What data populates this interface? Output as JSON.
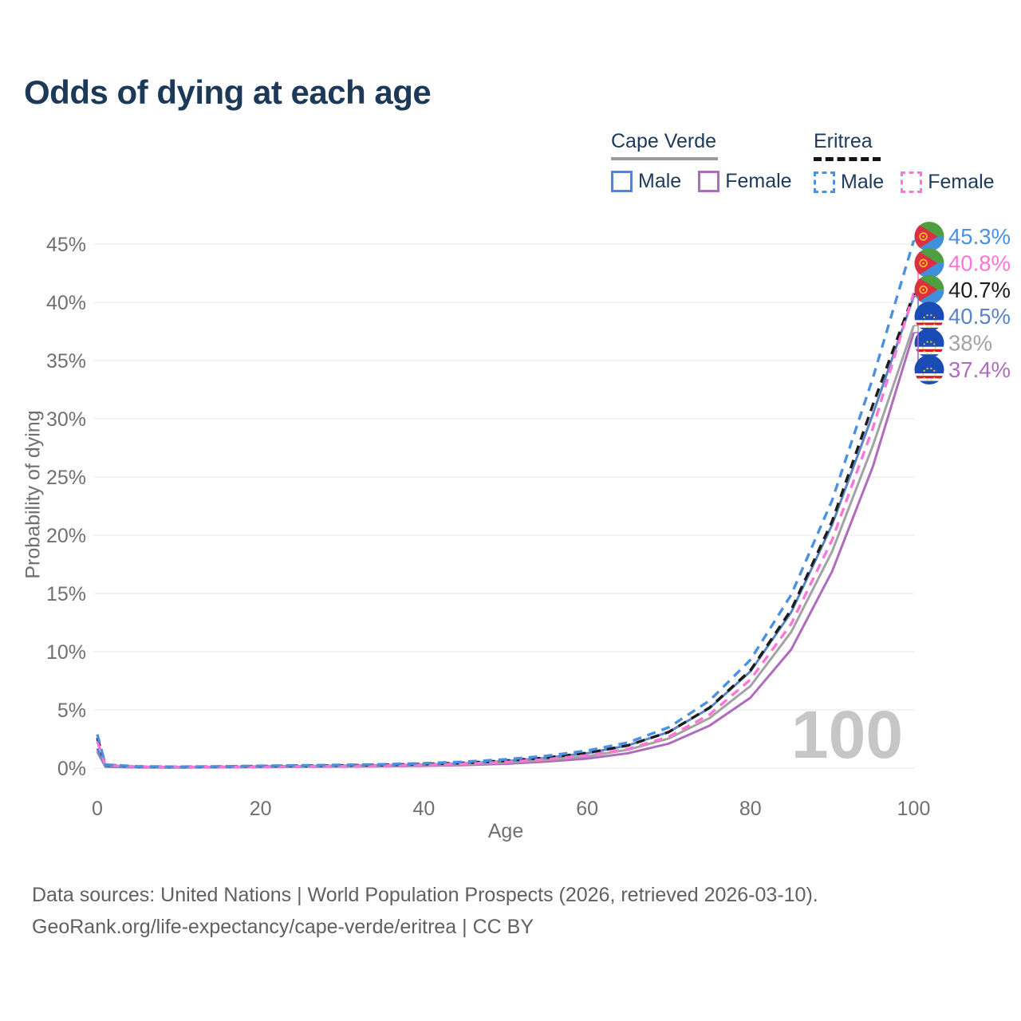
{
  "title": "Odds of dying at each age",
  "legend": {
    "groups": [
      {
        "label": "Cape Verde",
        "items": [
          {
            "label": "Male"
          },
          {
            "label": "Female"
          }
        ]
      },
      {
        "label": "Eritrea",
        "items": [
          {
            "label": "Male"
          },
          {
            "label": "Female"
          }
        ]
      }
    ]
  },
  "chart_data": {
    "type": "line",
    "title": "Odds of dying at each age",
    "xlabel": "Age",
    "ylabel": "Probability of dying",
    "xlim": [
      0,
      100
    ],
    "ylim_pct": [
      0,
      45
    ],
    "grid": "horizontal",
    "legend_position": "top-right",
    "watermark": "100",
    "x_ticks": [
      {
        "label": "0",
        "value": 0
      },
      {
        "label": "20",
        "value": 20
      },
      {
        "label": "40",
        "value": 40
      },
      {
        "label": "60",
        "value": 60
      },
      {
        "label": "80",
        "value": 80
      },
      {
        "label": "100",
        "value": 100
      }
    ],
    "y_ticks": [
      {
        "label": "0%",
        "value": 0
      },
      {
        "label": "5%",
        "value": 5
      },
      {
        "label": "10%",
        "value": 10
      },
      {
        "label": "15%",
        "value": 15
      },
      {
        "label": "20%",
        "value": 20
      },
      {
        "label": "25%",
        "value": 25
      },
      {
        "label": "30%",
        "value": 30
      },
      {
        "label": "35%",
        "value": 35
      },
      {
        "label": "40%",
        "value": 40
      },
      {
        "label": "45%",
        "value": 45
      }
    ],
    "x": [
      0,
      1,
      5,
      10,
      15,
      20,
      25,
      30,
      35,
      40,
      45,
      50,
      55,
      60,
      65,
      70,
      75,
      80,
      85,
      90,
      95,
      100
    ],
    "series": [
      {
        "name": "Eritrea Male",
        "country": "Eritrea",
        "sex": "Male",
        "style": "dashed",
        "color": "#4b90e2",
        "flag": "eritrea",
        "end_label": "45.3%",
        "values": [
          2.9,
          0.3,
          0.15,
          0.12,
          0.15,
          0.2,
          0.24,
          0.28,
          0.33,
          0.42,
          0.55,
          0.75,
          1.05,
          1.5,
          2.2,
          3.5,
          5.8,
          9.3,
          14.9,
          23.0,
          33.5,
          45.3
        ]
      },
      {
        "name": "Eritrea Female",
        "country": "Eritrea",
        "sex": "Female",
        "style": "dashed",
        "color": "#fb76d6",
        "flag": "eritrea",
        "end_label": "40.8%",
        "values": [
          2.3,
          0.25,
          0.12,
          0.09,
          0.11,
          0.13,
          0.15,
          0.18,
          0.22,
          0.28,
          0.38,
          0.52,
          0.75,
          1.1,
          1.65,
          2.7,
          4.6,
          7.6,
          12.4,
          19.6,
          29.2,
          40.8
        ]
      },
      {
        "name": "Eritrea Both sexes",
        "country": "Eritrea",
        "sex": "Both",
        "style": "dashed",
        "color": "#1c1c1c",
        "flag": "eritrea",
        "end_label": "40.7%",
        "values": [
          2.6,
          0.28,
          0.13,
          0.1,
          0.13,
          0.17,
          0.2,
          0.23,
          0.28,
          0.35,
          0.46,
          0.64,
          0.9,
          1.3,
          1.95,
          3.1,
          5.2,
          8.4,
          13.6,
          21.2,
          31.2,
          40.7
        ]
      },
      {
        "name": "Cape Verde Male",
        "country": "Cape Verde",
        "sex": "Male",
        "style": "solid",
        "color": "#5b84c4",
        "flag": "cape-verde",
        "end_label": "40.5%",
        "values": [
          1.7,
          0.16,
          0.08,
          0.07,
          0.1,
          0.15,
          0.18,
          0.21,
          0.25,
          0.31,
          0.42,
          0.6,
          0.88,
          1.28,
          1.95,
          3.1,
          5.15,
          8.3,
          13.4,
          20.9,
          30.4,
          40.5
        ]
      },
      {
        "name": "Cape Verde Both sexes",
        "country": "Cape Verde",
        "sex": "Both",
        "style": "solid",
        "color": "#a3a3a3",
        "flag": "cape-verde",
        "end_label": "38%",
        "values": [
          1.55,
          0.14,
          0.07,
          0.06,
          0.08,
          0.11,
          0.14,
          0.16,
          0.2,
          0.25,
          0.34,
          0.48,
          0.7,
          1.02,
          1.58,
          2.55,
          4.3,
          7.05,
          11.7,
          18.6,
          27.7,
          38.0
        ]
      },
      {
        "name": "Cape Verde Female",
        "country": "Cape Verde",
        "sex": "Female",
        "style": "solid",
        "color": "#ae6cbd",
        "flag": "cape-verde",
        "end_label": "37.4%",
        "values": [
          1.4,
          0.12,
          0.06,
          0.05,
          0.07,
          0.09,
          0.11,
          0.13,
          0.16,
          0.2,
          0.27,
          0.38,
          0.56,
          0.82,
          1.28,
          2.1,
          3.65,
          6.05,
          10.2,
          16.9,
          25.9,
          37.4
        ]
      }
    ],
    "colors": {
      "title_text": "#1c3a57",
      "axis_text": "#707070",
      "gridline": "#ececec",
      "watermark": "#c6c6c6",
      "cape_verde_underline": "#9c9c9c",
      "eritrea_underline": "#141414",
      "flag_eritrea_green": "#4f9e3f",
      "flag_eritrea_blue": "#3f8fdc",
      "flag_eritrea_red": "#dc2f3f",
      "flag_eritrea_yellow": "#ffc423",
      "flag_cape_verde_blue": "#1b4cb5",
      "flag_cape_verde_red": "#cf2027",
      "flag_cape_verde_yellow": "#ffd216"
    }
  },
  "footer": {
    "line1": "Data sources: United Nations | World Population Prospects (2026, retrieved 2026-03-10).",
    "line2": "GeoRank.org/life-expectancy/cape-verde/eritrea | CC BY"
  }
}
